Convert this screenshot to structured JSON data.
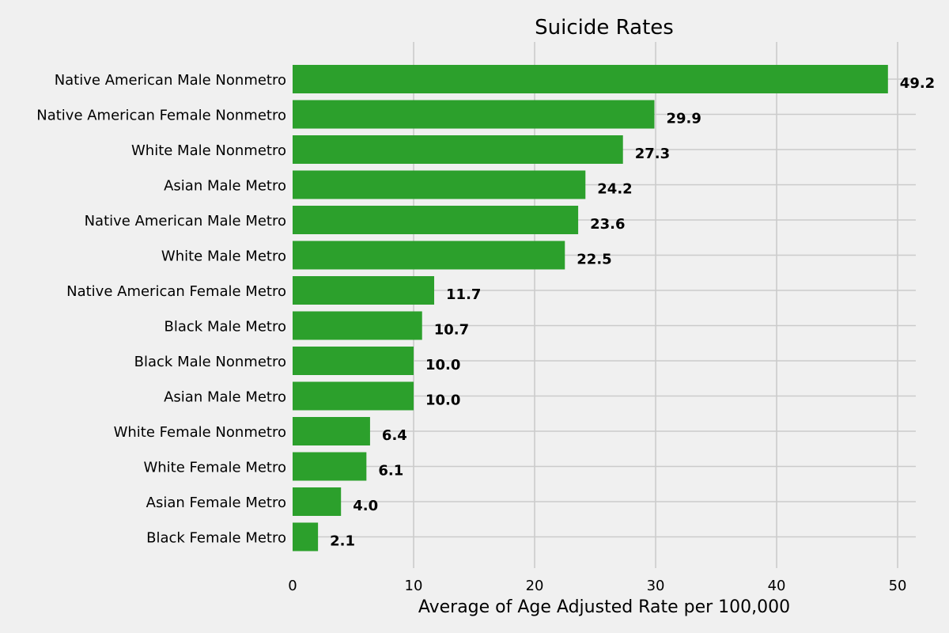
{
  "chart_data": {
    "type": "bar",
    "orientation": "horizontal",
    "title": "Suicide Rates",
    "xlabel": "Average of Age Adjusted Rate per 100,000",
    "ylabel": "",
    "xlim": [
      0,
      51.5
    ],
    "xticks": [
      0,
      10,
      20,
      30,
      40,
      50
    ],
    "grid": true,
    "bar_color": "#2ca02c",
    "categories": [
      "Native American Male Nonmetro",
      "Native American Female Nonmetro",
      "White Male Nonmetro",
      "Asian Male Metro",
      "Native American Male Metro",
      "White Male Metro",
      "Native American Female Metro",
      "Black Male Metro",
      "Black Male Nonmetro",
      "Asian Male Metro",
      "White Female Nonmetro",
      "White Female Metro",
      "Asian Female Metro",
      "Black Female Metro"
    ],
    "values": [
      49.2,
      29.9,
      27.3,
      24.2,
      23.6,
      22.5,
      11.7,
      10.7,
      10.0,
      10.0,
      6.4,
      6.1,
      4.0,
      2.1
    ],
    "value_labels": [
      "49.2",
      "29.9",
      "27.3",
      "24.2",
      "23.6",
      "22.5",
      "11.7",
      "10.7",
      "10.0",
      "10.0",
      "6.4",
      "6.1",
      "4.0",
      "2.1"
    ]
  }
}
